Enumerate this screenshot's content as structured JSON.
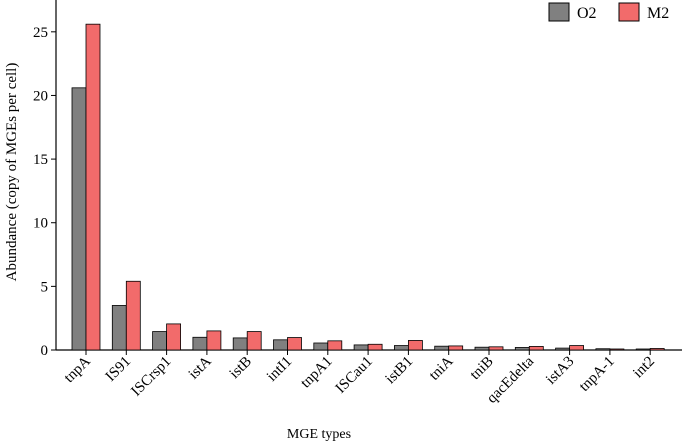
{
  "chart_data": {
    "type": "bar",
    "title": "",
    "xlabel": "MGE types",
    "ylabel": "Abundance (copy of MGEs per cell)",
    "ylim": [
      0,
      27.5
    ],
    "yticks": [
      "0",
      "5",
      "10",
      "15",
      "20",
      "25"
    ],
    "grid": false,
    "legend_position": "top-right",
    "categories": [
      "tnpA",
      "IS91",
      "ISCrsp1",
      "istA",
      "istB",
      "intI1",
      "tnpA1",
      "ISCau1",
      "istB1",
      "tniA",
      "tniB",
      "qacEdelta",
      "istA3",
      "tnpA-1",
      "int2"
    ],
    "series": [
      {
        "name": "O2",
        "color": "#808080",
        "values": [
          20.6,
          3.5,
          1.45,
          1.0,
          0.95,
          0.8,
          0.55,
          0.4,
          0.35,
          0.3,
          0.22,
          0.2,
          0.15,
          0.1,
          0.08
        ]
      },
      {
        "name": "M2",
        "color": "#f26b6b",
        "values": [
          25.6,
          5.4,
          2.05,
          1.5,
          1.45,
          0.98,
          0.72,
          0.45,
          0.75,
          0.32,
          0.25,
          0.28,
          0.35,
          0.08,
          0.12
        ]
      }
    ]
  }
}
